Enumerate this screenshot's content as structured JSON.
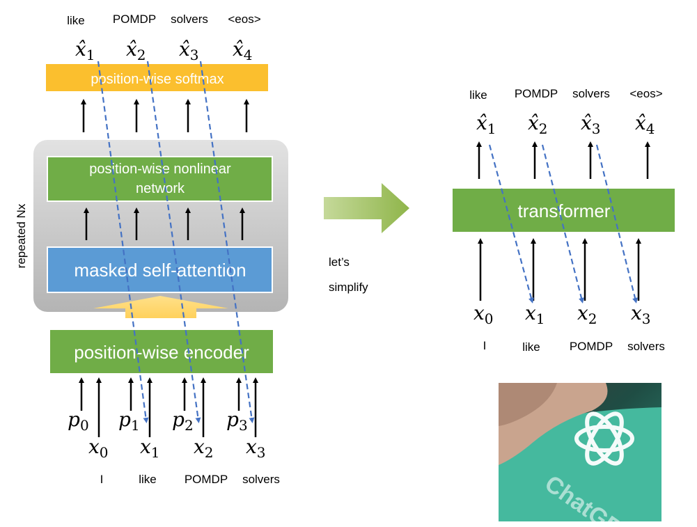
{
  "left": {
    "top_words": [
      "like",
      "POMDP",
      "solvers",
      "<eos>"
    ],
    "outputs": [
      {
        "base": "x̂",
        "sub": "1"
      },
      {
        "base": "x̂",
        "sub": "2"
      },
      {
        "base": "x̂",
        "sub": "3"
      },
      {
        "base": "x̂",
        "sub": "4"
      }
    ],
    "softmax_label": "position-wise softmax",
    "nonlinear_label_line1": "position-wise nonlinear",
    "nonlinear_label_line2": "network",
    "attention_label": "masked self-attention",
    "encoder_label": "position-wise encoder",
    "repeated_label": "repeated Nx",
    "positions": [
      {
        "base": "p",
        "sub": "0"
      },
      {
        "base": "p",
        "sub": "1"
      },
      {
        "base": "p",
        "sub": "2"
      },
      {
        "base": "p",
        "sub": "3"
      }
    ],
    "inputs": [
      {
        "base": "x",
        "sub": "0"
      },
      {
        "base": "x",
        "sub": "1"
      },
      {
        "base": "x",
        "sub": "2"
      },
      {
        "base": "x",
        "sub": "3"
      }
    ],
    "bottom_words": [
      "I",
      "like",
      "POMDP",
      "solvers"
    ]
  },
  "middle": {
    "caption_line1": "let’s",
    "caption_line2": "simplify"
  },
  "right": {
    "top_words": [
      "like",
      "POMDP",
      "solvers",
      "<eos>"
    ],
    "outputs": [
      {
        "base": "x̂",
        "sub": "1"
      },
      {
        "base": "x̂",
        "sub": "2"
      },
      {
        "base": "x̂",
        "sub": "3"
      },
      {
        "base": "x̂",
        "sub": "4"
      }
    ],
    "transformer_label": "transformer",
    "inputs": [
      {
        "base": "x",
        "sub": "0"
      },
      {
        "base": "x",
        "sub": "1"
      },
      {
        "base": "x",
        "sub": "2"
      },
      {
        "base": "x",
        "sub": "3"
      }
    ],
    "bottom_words": [
      "I",
      "like",
      "POMDP",
      "solvers"
    ]
  },
  "photo": {
    "logo_text": "ChatGPT"
  },
  "colors": {
    "softmax": "#fbbf2e",
    "green": "#70ad47",
    "attention": "#5b9bd5",
    "gray_panel": "#c8c8c8",
    "dashed": "#4472c4",
    "arrow": "#000000",
    "photo_teal": "#45b99e"
  }
}
